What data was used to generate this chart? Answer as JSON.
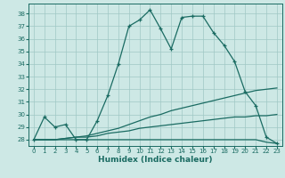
{
  "title": "",
  "xlabel": "Humidex (Indice chaleur)",
  "bg_color": "#cde8e5",
  "grid_color": "#a0c8c4",
  "line_color": "#1a6b62",
  "xlim": [
    -0.5,
    23.5
  ],
  "ylim": [
    27.5,
    38.8
  ],
  "xticks": [
    0,
    1,
    2,
    3,
    4,
    5,
    6,
    7,
    8,
    9,
    10,
    11,
    12,
    13,
    14,
    15,
    16,
    17,
    18,
    19,
    20,
    21,
    22,
    23
  ],
  "yticks": [
    28,
    29,
    30,
    31,
    32,
    33,
    34,
    35,
    36,
    37,
    38
  ],
  "hours": [
    0,
    1,
    2,
    3,
    4,
    5,
    6,
    7,
    8,
    9,
    10,
    11,
    12,
    13,
    14,
    15,
    16,
    17,
    18,
    19,
    20,
    21,
    22,
    23
  ],
  "humidex_main": [
    28.0,
    29.8,
    29.0,
    29.2,
    28.0,
    28.0,
    29.5,
    31.5,
    34.0,
    37.0,
    37.5,
    38.3,
    36.8,
    35.2,
    37.7,
    37.8,
    37.8,
    36.5,
    35.5,
    34.2,
    31.8,
    30.7,
    28.2,
    27.7
  ],
  "humidex_max": [
    28.0,
    28.0,
    28.0,
    28.1,
    28.2,
    28.3,
    28.5,
    28.7,
    28.9,
    29.2,
    29.5,
    29.8,
    30.0,
    30.3,
    30.5,
    30.7,
    30.9,
    31.1,
    31.3,
    31.5,
    31.7,
    31.9,
    32.0,
    32.1
  ],
  "humidex_avg": [
    28.0,
    28.0,
    28.0,
    28.1,
    28.2,
    28.2,
    28.3,
    28.5,
    28.6,
    28.7,
    28.9,
    29.0,
    29.1,
    29.2,
    29.3,
    29.4,
    29.5,
    29.6,
    29.7,
    29.8,
    29.8,
    29.9,
    29.9,
    30.0
  ],
  "humidex_min": [
    28.0,
    28.0,
    28.0,
    28.0,
    28.0,
    28.0,
    28.0,
    28.0,
    28.0,
    28.0,
    28.0,
    28.0,
    28.0,
    28.0,
    28.0,
    28.0,
    28.0,
    28.0,
    28.0,
    28.0,
    28.0,
    28.0,
    27.8,
    27.7
  ],
  "tick_fontsize": 5.0,
  "xlabel_fontsize": 6.5,
  "marker_size": 3.5,
  "line_width": 0.9
}
